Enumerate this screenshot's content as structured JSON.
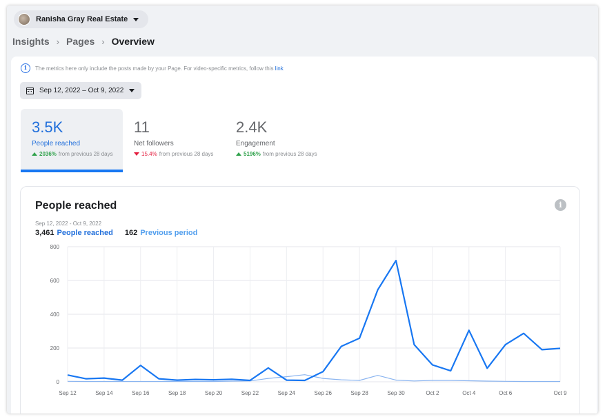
{
  "page_switcher": {
    "name": "Ranisha Gray Real Estate"
  },
  "breadcrumb": [
    "Insights",
    "Pages",
    "Overview"
  ],
  "notice": {
    "text": "The metrics here only include the posts made by your Page. For video-specific metrics, follow this",
    "link": "link"
  },
  "date_range": "Sep 12, 2022 – Oct 9, 2022",
  "metrics": [
    {
      "value": "3.5K",
      "label": "People reached",
      "change": "2036%",
      "direction": "up",
      "suffix": "from previous 28 days"
    },
    {
      "value": "11",
      "label": "Net followers",
      "change": "15.4%",
      "direction": "down",
      "suffix": "from previous 28 days"
    },
    {
      "value": "2.4K",
      "label": "Engagement",
      "change": "5196%",
      "direction": "up",
      "suffix": "from previous 28 days"
    }
  ],
  "card": {
    "title": "People reached",
    "range": "Sep 12, 2022 - Oct 9, 2022",
    "current_total": "3,461",
    "current_label": "People reached",
    "previous_total": "162",
    "previous_label": "Previous period"
  },
  "colors": {
    "current": "#1877f2",
    "previous": "#8ab4f0",
    "up": "#31a24c",
    "down": "#e41e3f"
  },
  "chart_data": {
    "type": "line",
    "x": [
      "Sep 12",
      "Sep 13",
      "Sep 14",
      "Sep 15",
      "Sep 16",
      "Sep 17",
      "Sep 18",
      "Sep 19",
      "Sep 20",
      "Sep 21",
      "Sep 22",
      "Sep 23",
      "Sep 24",
      "Sep 25",
      "Sep 26",
      "Sep 27",
      "Sep 28",
      "Sep 29",
      "Sep 30",
      "Oct 1",
      "Oct 2",
      "Oct 3",
      "Oct 4",
      "Oct 5",
      "Oct 6",
      "Oct 7",
      "Oct 8",
      "Oct 9"
    ],
    "x_tick_labels": [
      "Sep 12",
      "Sep 14",
      "Sep 16",
      "Sep 18",
      "Sep 20",
      "Sep 22",
      "Sep 24",
      "Sep 26",
      "Sep 28",
      "Sep 30",
      "Oct 2",
      "Oct 4",
      "Oct 6",
      "Oct 9"
    ],
    "y_ticks": [
      0,
      200,
      400,
      600,
      800
    ],
    "ylim": [
      0,
      800
    ],
    "grid": true,
    "series": [
      {
        "name": "People reached",
        "values": [
          40,
          18,
          22,
          10,
          97,
          18,
          10,
          14,
          12,
          15,
          8,
          82,
          10,
          8,
          60,
          210,
          258,
          545,
          718,
          220,
          100,
          65,
          305,
          80,
          220,
          287,
          190,
          198
        ]
      },
      {
        "name": "Previous period",
        "values": [
          3,
          2,
          2,
          2,
          2,
          2,
          2,
          2,
          2,
          4,
          5,
          20,
          30,
          42,
          20,
          12,
          8,
          38,
          10,
          5,
          8,
          8,
          6,
          4,
          3,
          2,
          2,
          2
        ]
      }
    ]
  }
}
